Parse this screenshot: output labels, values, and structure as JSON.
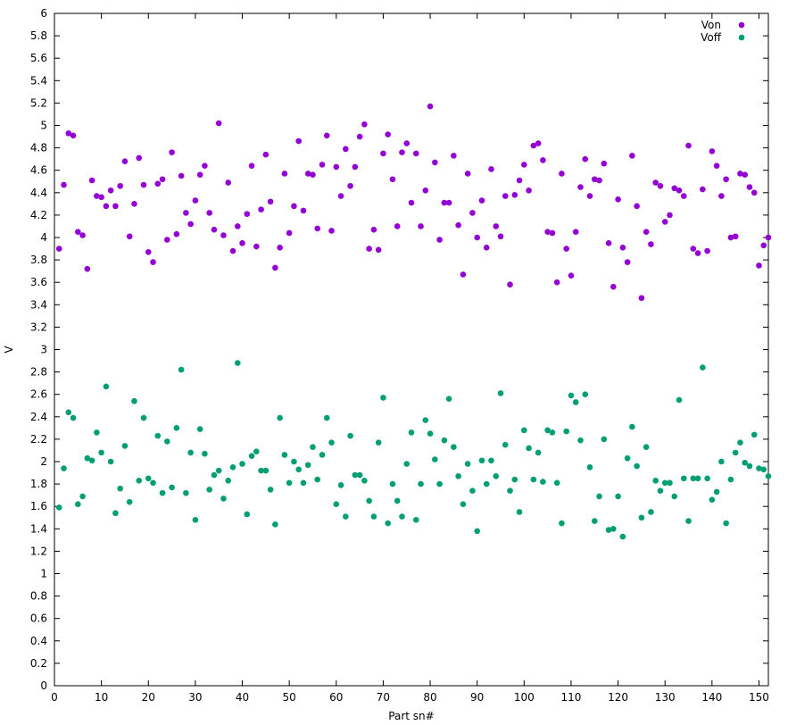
{
  "chart_data": {
    "type": "scatter",
    "xlabel": "Part sn#",
    "ylabel": "V",
    "xlim": [
      0,
      152
    ],
    "ylim": [
      0,
      6
    ],
    "x_ticks": [
      0,
      10,
      20,
      30,
      40,
      50,
      60,
      70,
      80,
      90,
      100,
      110,
      120,
      130,
      140,
      150
    ],
    "y_ticks": [
      0,
      0.2,
      0.4,
      0.6,
      0.8,
      1,
      1.2,
      1.4,
      1.6,
      1.8,
      2,
      2.2,
      2.4,
      2.6,
      2.8,
      3,
      3.2,
      3.4,
      3.6,
      3.8,
      4,
      4.2,
      4.4,
      4.6,
      4.8,
      5,
      5.2,
      5.4,
      5.6,
      5.8,
      6
    ],
    "legend_position": "top-right",
    "grid": false,
    "series": [
      {
        "name": "Von",
        "color": "#9400d3",
        "x": [
          1,
          2,
          3,
          4,
          5,
          6,
          7,
          8,
          9,
          10,
          11,
          12,
          13,
          14,
          15,
          16,
          17,
          18,
          19,
          20,
          21,
          22,
          23,
          24,
          25,
          26,
          27,
          28,
          29,
          30,
          31,
          32,
          33,
          34,
          35,
          36,
          37,
          38,
          39,
          40,
          41,
          42,
          43,
          44,
          45,
          46,
          47,
          48,
          49,
          50,
          51,
          52,
          53,
          54,
          55,
          56,
          57,
          58,
          59,
          60,
          61,
          62,
          63,
          64,
          65,
          66,
          67,
          68,
          69,
          70,
          71,
          72,
          73,
          74,
          75,
          76,
          77,
          78,
          79,
          80,
          81,
          82,
          83,
          84,
          85,
          86,
          87,
          88,
          89,
          90,
          91,
          92,
          93,
          94,
          95,
          96,
          97,
          98,
          99,
          100,
          101,
          102,
          103,
          104,
          105,
          106,
          107,
          108,
          109,
          110,
          111,
          112,
          113,
          114,
          115,
          116,
          117,
          118,
          119,
          120,
          121,
          122,
          123,
          124,
          125,
          126,
          127,
          128,
          129,
          130,
          131,
          132,
          133,
          134,
          135,
          136,
          137,
          138,
          139,
          140,
          141,
          142,
          143,
          144,
          145,
          146,
          147,
          148,
          149,
          150,
          151,
          152
        ],
        "y": [
          3.9,
          4.47,
          4.93,
          4.91,
          4.05,
          4.02,
          3.72,
          4.51,
          4.37,
          4.36,
          4.28,
          4.42,
          4.28,
          4.46,
          4.68,
          4.01,
          4.3,
          4.71,
          4.47,
          3.87,
          3.78,
          4.48,
          4.52,
          3.98,
          4.76,
          4.03,
          4.55,
          4.22,
          4.12,
          4.33,
          4.56,
          4.64,
          4.22,
          4.07,
          5.02,
          4.02,
          4.49,
          3.88,
          4.1,
          3.95,
          4.21,
          4.64,
          3.92,
          4.25,
          4.74,
          4.32,
          3.73,
          3.91,
          4.57,
          4.04,
          4.28,
          4.86,
          4.24,
          4.57,
          4.56,
          4.08,
          4.65,
          4.91,
          4.06,
          4.63,
          4.37,
          4.79,
          4.46,
          4.63,
          4.9,
          5.01,
          3.9,
          4.07,
          3.89,
          4.75,
          4.92,
          4.52,
          4.1,
          4.76,
          4.84,
          4.31,
          4.75,
          4.1,
          4.42,
          5.17,
          4.67,
          3.98,
          4.31,
          4.31,
          4.73,
          4.11,
          3.67,
          4.57,
          4.22,
          4.0,
          4.33,
          3.91,
          4.61,
          4.1,
          4.01,
          4.37,
          3.58,
          4.38,
          4.51,
          4.65,
          4.42,
          4.82,
          4.84,
          4.69,
          4.05,
          4.04,
          3.6,
          4.57,
          3.9,
          3.66,
          4.05,
          4.45,
          4.7,
          4.37,
          4.52,
          4.51,
          4.66,
          3.95,
          3.56,
          4.34,
          3.91,
          3.78,
          4.73,
          4.28,
          3.46,
          4.05,
          3.94,
          4.49,
          4.46,
          4.14,
          4.2,
          4.44,
          4.42,
          4.37,
          4.82,
          3.9,
          3.86,
          4.43,
          3.88,
          4.77,
          4.64,
          4.37,
          4.52,
          4.0,
          4.01,
          4.57,
          4.56,
          4.45,
          4.4,
          3.75,
          3.93,
          4.0
        ]
      },
      {
        "name": "Voff",
        "color": "#009e73",
        "x": [
          1,
          2,
          3,
          4,
          5,
          6,
          7,
          8,
          9,
          10,
          11,
          12,
          13,
          14,
          15,
          16,
          17,
          18,
          19,
          20,
          21,
          22,
          23,
          24,
          25,
          26,
          27,
          28,
          29,
          30,
          31,
          32,
          33,
          34,
          35,
          36,
          37,
          38,
          39,
          40,
          41,
          42,
          43,
          44,
          45,
          46,
          47,
          48,
          49,
          50,
          51,
          52,
          53,
          54,
          55,
          56,
          57,
          58,
          59,
          60,
          61,
          62,
          63,
          64,
          65,
          66,
          67,
          68,
          69,
          70,
          71,
          72,
          73,
          74,
          75,
          76,
          77,
          78,
          79,
          80,
          81,
          82,
          83,
          84,
          85,
          86,
          87,
          88,
          89,
          90,
          91,
          92,
          93,
          94,
          95,
          96,
          97,
          98,
          99,
          100,
          101,
          102,
          103,
          104,
          105,
          106,
          107,
          108,
          109,
          110,
          111,
          112,
          113,
          114,
          115,
          116,
          117,
          118,
          119,
          120,
          121,
          122,
          123,
          124,
          125,
          126,
          127,
          128,
          129,
          130,
          131,
          132,
          133,
          134,
          135,
          136,
          137,
          138,
          139,
          140,
          141,
          142,
          143,
          144,
          145,
          146,
          147,
          148,
          149,
          150,
          151,
          152
        ],
        "y": [
          1.59,
          1.94,
          2.44,
          2.39,
          1.62,
          1.69,
          2.03,
          2.01,
          2.26,
          2.08,
          2.67,
          2.0,
          1.54,
          1.76,
          2.14,
          1.64,
          2.54,
          1.83,
          2.39,
          1.85,
          1.81,
          2.23,
          1.72,
          2.18,
          1.77,
          2.3,
          2.82,
          1.72,
          2.08,
          1.48,
          2.29,
          2.07,
          1.75,
          1.88,
          1.92,
          1.67,
          1.83,
          1.95,
          2.88,
          1.98,
          1.53,
          2.05,
          2.09,
          1.92,
          1.92,
          1.75,
          1.44,
          2.39,
          2.06,
          1.81,
          2.0,
          1.93,
          1.81,
          1.97,
          2.13,
          1.84,
          2.06,
          2.39,
          2.17,
          1.62,
          1.79,
          1.51,
          2.23,
          1.88,
          1.88,
          1.83,
          1.65,
          1.51,
          2.17,
          2.57,
          1.45,
          1.8,
          1.65,
          1.51,
          1.98,
          2.26,
          1.48,
          1.8,
          2.37,
          2.25,
          2.02,
          1.8,
          2.19,
          2.56,
          2.13,
          1.87,
          1.62,
          1.98,
          1.74,
          1.38,
          2.01,
          1.8,
          2.01,
          1.87,
          2.61,
          2.15,
          1.74,
          1.84,
          1.55,
          2.28,
          2.12,
          1.84,
          2.08,
          1.82,
          2.28,
          2.26,
          1.81,
          1.45,
          2.27,
          2.59,
          2.53,
          2.19,
          2.6,
          1.95,
          1.47,
          1.69,
          2.2,
          1.39,
          1.4,
          1.69,
          1.33,
          2.03,
          2.31,
          1.96,
          1.5,
          2.13,
          1.55,
          1.83,
          1.74,
          1.81,
          1.81,
          1.69,
          2.55,
          1.85,
          1.47,
          1.85,
          1.85,
          2.84,
          1.85,
          1.66,
          1.73,
          2.0,
          1.45,
          1.84,
          2.08,
          2.17,
          1.99,
          1.96,
          2.24,
          1.94,
          1.93,
          1.87
        ]
      }
    ]
  }
}
